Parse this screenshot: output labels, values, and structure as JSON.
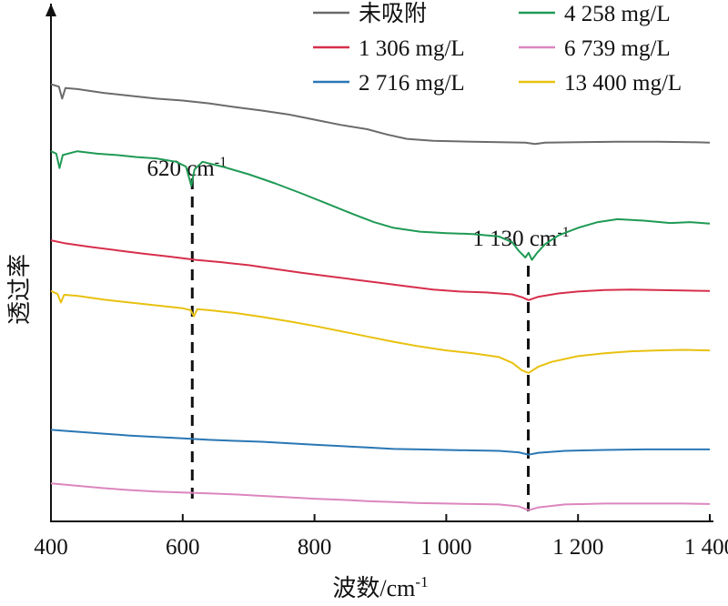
{
  "chart_data": {
    "type": "line",
    "xlabel": "波数/cm",
    "xlabel_sup": "-1",
    "ylabel": "透过率",
    "xlim": [
      400,
      1400
    ],
    "xticks": [
      {
        "value": 400,
        "label": "400"
      },
      {
        "value": 600,
        "label": "600"
      },
      {
        "value": 800,
        "label": "800"
      },
      {
        "value": 1000,
        "label": "1 000"
      },
      {
        "value": 1200,
        "label": "1 200"
      },
      {
        "value": 1400,
        "label": "1 400"
      }
    ],
    "y_ticks_shown": false,
    "grid": false,
    "legend_position": "top-right",
    "annotations": [
      {
        "x": 620,
        "text": "620 cm",
        "sup": "-1"
      },
      {
        "x": 1130,
        "text": "1 130 cm",
        "sup": "-1"
      }
    ],
    "series": [
      {
        "name": "未吸附",
        "color": "#6b6b6b",
        "legend_col": 0,
        "legend_row": 0,
        "points": [
          [
            400,
            0.9
          ],
          [
            412,
            0.895
          ],
          [
            417,
            0.87
          ],
          [
            422,
            0.892
          ],
          [
            440,
            0.89
          ],
          [
            480,
            0.882
          ],
          [
            520,
            0.876
          ],
          [
            560,
            0.87
          ],
          [
            600,
            0.866
          ],
          [
            640,
            0.86
          ],
          [
            680,
            0.852
          ],
          [
            720,
            0.845
          ],
          [
            760,
            0.837
          ],
          [
            800,
            0.826
          ],
          [
            840,
            0.815
          ],
          [
            880,
            0.806
          ],
          [
            910,
            0.795
          ],
          [
            940,
            0.786
          ],
          [
            980,
            0.782
          ],
          [
            1040,
            0.78
          ],
          [
            1080,
            0.779
          ],
          [
            1120,
            0.778
          ],
          [
            1135,
            0.775
          ],
          [
            1150,
            0.778
          ],
          [
            1200,
            0.779
          ],
          [
            1260,
            0.78
          ],
          [
            1320,
            0.78
          ],
          [
            1370,
            0.779
          ],
          [
            1400,
            0.778
          ]
        ]
      },
      {
        "name": "4 258 mg/L",
        "color": "#1f9a55",
        "legend_col": 1,
        "legend_row": 0,
        "points": [
          [
            400,
            0.76
          ],
          [
            408,
            0.755
          ],
          [
            413,
            0.725
          ],
          [
            418,
            0.752
          ],
          [
            440,
            0.76
          ],
          [
            470,
            0.755
          ],
          [
            500,
            0.752
          ],
          [
            530,
            0.748
          ],
          [
            560,
            0.745
          ],
          [
            590,
            0.738
          ],
          [
            605,
            0.728
          ],
          [
            613,
            0.688
          ],
          [
            618,
            0.722
          ],
          [
            630,
            0.738
          ],
          [
            660,
            0.728
          ],
          [
            700,
            0.712
          ],
          [
            740,
            0.693
          ],
          [
            780,
            0.672
          ],
          [
            820,
            0.65
          ],
          [
            860,
            0.628
          ],
          [
            890,
            0.612
          ],
          [
            920,
            0.6
          ],
          [
            960,
            0.592
          ],
          [
            1000,
            0.589
          ],
          [
            1040,
            0.587
          ],
          [
            1080,
            0.582
          ],
          [
            1100,
            0.57
          ],
          [
            1110,
            0.552
          ],
          [
            1120,
            0.538
          ],
          [
            1125,
            0.548
          ],
          [
            1130,
            0.533
          ],
          [
            1138,
            0.548
          ],
          [
            1150,
            0.566
          ],
          [
            1170,
            0.584
          ],
          [
            1200,
            0.6
          ],
          [
            1230,
            0.612
          ],
          [
            1260,
            0.618
          ],
          [
            1300,
            0.615
          ],
          [
            1340,
            0.61
          ],
          [
            1370,
            0.612
          ],
          [
            1400,
            0.609
          ]
        ]
      },
      {
        "name": "1 306 mg/L",
        "color": "#d62f4c",
        "legend_col": 0,
        "legend_row": 1,
        "points": [
          [
            400,
            0.574
          ],
          [
            420,
            0.568
          ],
          [
            460,
            0.56
          ],
          [
            500,
            0.553
          ],
          [
            540,
            0.546
          ],
          [
            580,
            0.54
          ],
          [
            620,
            0.533
          ],
          [
            660,
            0.528
          ],
          [
            700,
            0.522
          ],
          [
            740,
            0.514
          ],
          [
            780,
            0.506
          ],
          [
            820,
            0.499
          ],
          [
            860,
            0.492
          ],
          [
            900,
            0.485
          ],
          [
            940,
            0.478
          ],
          [
            980,
            0.471
          ],
          [
            1020,
            0.467
          ],
          [
            1060,
            0.465
          ],
          [
            1100,
            0.461
          ],
          [
            1115,
            0.455
          ],
          [
            1125,
            0.449
          ],
          [
            1140,
            0.456
          ],
          [
            1170,
            0.463
          ],
          [
            1200,
            0.467
          ],
          [
            1240,
            0.47
          ],
          [
            1280,
            0.471
          ],
          [
            1320,
            0.47
          ],
          [
            1360,
            0.469
          ],
          [
            1400,
            0.468
          ]
        ]
      },
      {
        "name": "6 739 mg/L",
        "color": "#dc86be",
        "legend_col": 1,
        "legend_row": 1,
        "points": [
          [
            400,
            0.066
          ],
          [
            440,
            0.061
          ],
          [
            480,
            0.056
          ],
          [
            520,
            0.052
          ],
          [
            560,
            0.049
          ],
          [
            600,
            0.047
          ],
          [
            640,
            0.045
          ],
          [
            680,
            0.043
          ],
          [
            720,
            0.04
          ],
          [
            760,
            0.037
          ],
          [
            800,
            0.034
          ],
          [
            840,
            0.032
          ],
          [
            880,
            0.029
          ],
          [
            920,
            0.027
          ],
          [
            960,
            0.025
          ],
          [
            1000,
            0.024
          ],
          [
            1040,
            0.023
          ],
          [
            1080,
            0.022
          ],
          [
            1110,
            0.018
          ],
          [
            1125,
            0.01
          ],
          [
            1140,
            0.016
          ],
          [
            1180,
            0.022
          ],
          [
            1240,
            0.024
          ],
          [
            1300,
            0.024
          ],
          [
            1360,
            0.024
          ],
          [
            1400,
            0.023
          ]
        ]
      },
      {
        "name": "2 716 mg/L",
        "color": "#2a77b4",
        "legend_col": 0,
        "legend_row": 2,
        "points": [
          [
            400,
            0.178
          ],
          [
            440,
            0.174
          ],
          [
            480,
            0.17
          ],
          [
            520,
            0.166
          ],
          [
            560,
            0.163
          ],
          [
            600,
            0.16
          ],
          [
            640,
            0.157
          ],
          [
            680,
            0.155
          ],
          [
            720,
            0.153
          ],
          [
            760,
            0.15
          ],
          [
            800,
            0.147
          ],
          [
            840,
            0.144
          ],
          [
            880,
            0.141
          ],
          [
            920,
            0.138
          ],
          [
            960,
            0.137
          ],
          [
            1000,
            0.136
          ],
          [
            1040,
            0.135
          ],
          [
            1080,
            0.134
          ],
          [
            1110,
            0.131
          ],
          [
            1125,
            0.126
          ],
          [
            1140,
            0.13
          ],
          [
            1180,
            0.134
          ],
          [
            1240,
            0.136
          ],
          [
            1300,
            0.137
          ],
          [
            1360,
            0.137
          ],
          [
            1400,
            0.137
          ]
        ]
      },
      {
        "name": "13 400 mg/L",
        "color": "#e8c110",
        "legend_col": 1,
        "legend_row": 2,
        "points": [
          [
            400,
            0.468
          ],
          [
            410,
            0.462
          ],
          [
            415,
            0.444
          ],
          [
            420,
            0.46
          ],
          [
            440,
            0.458
          ],
          [
            480,
            0.45
          ],
          [
            520,
            0.444
          ],
          [
            560,
            0.438
          ],
          [
            600,
            0.432
          ],
          [
            612,
            0.428
          ],
          [
            617,
            0.415
          ],
          [
            622,
            0.43
          ],
          [
            640,
            0.428
          ],
          [
            680,
            0.422
          ],
          [
            720,
            0.414
          ],
          [
            760,
            0.405
          ],
          [
            800,
            0.395
          ],
          [
            840,
            0.384
          ],
          [
            880,
            0.373
          ],
          [
            920,
            0.362
          ],
          [
            960,
            0.352
          ],
          [
            1000,
            0.344
          ],
          [
            1040,
            0.338
          ],
          [
            1080,
            0.33
          ],
          [
            1100,
            0.318
          ],
          [
            1115,
            0.302
          ],
          [
            1125,
            0.297
          ],
          [
            1140,
            0.31
          ],
          [
            1160,
            0.32
          ],
          [
            1200,
            0.332
          ],
          [
            1240,
            0.338
          ],
          [
            1280,
            0.342
          ],
          [
            1320,
            0.344
          ],
          [
            1360,
            0.345
          ],
          [
            1400,
            0.344
          ]
        ]
      }
    ]
  }
}
